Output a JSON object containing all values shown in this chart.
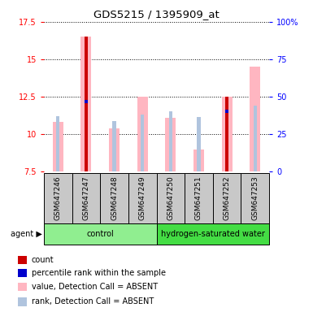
{
  "title": "GDS5215 / 1395909_at",
  "samples": [
    "GSM647246",
    "GSM647247",
    "GSM647248",
    "GSM647249",
    "GSM647250",
    "GSM647251",
    "GSM647252",
    "GSM647253"
  ],
  "ylim_left": [
    7.5,
    17.5
  ],
  "yticks_left": [
    7.5,
    10.0,
    12.5,
    15.0,
    17.5
  ],
  "yticks_left_labels": [
    "7.5",
    "10",
    "12.5",
    "15",
    "17.5"
  ],
  "yticks_right": [
    0,
    25,
    50,
    75,
    100
  ],
  "yticks_right_labels": [
    "0",
    "25",
    "50",
    "75",
    "100%"
  ],
  "value_bars": [
    10.8,
    16.5,
    10.4,
    12.5,
    11.1,
    9.0,
    12.5,
    14.5
  ],
  "rank_bars": [
    11.2,
    12.2,
    10.9,
    11.3,
    11.5,
    11.15,
    11.5,
    11.9
  ],
  "count_bars": [
    null,
    16.5,
    null,
    null,
    null,
    null,
    12.5,
    null
  ],
  "percentile_bars": [
    null,
    12.2,
    null,
    null,
    null,
    null,
    11.5,
    null
  ],
  "bar_bottom": 7.5,
  "value_color": "#FFB6C1",
  "rank_color": "#B0C4DE",
  "count_color": "#CC0000",
  "percentile_color": "#0000CC",
  "legend_items": [
    {
      "label": "count",
      "color": "#CC0000"
    },
    {
      "label": "percentile rank within the sample",
      "color": "#0000CC"
    },
    {
      "label": "value, Detection Call = ABSENT",
      "color": "#FFB6C1"
    },
    {
      "label": "rank, Detection Call = ABSENT",
      "color": "#B0C4DE"
    }
  ],
  "control_color": "#90EE90",
  "hydrogen_color": "#44DD44",
  "sample_box_color": "#C8C8C8"
}
